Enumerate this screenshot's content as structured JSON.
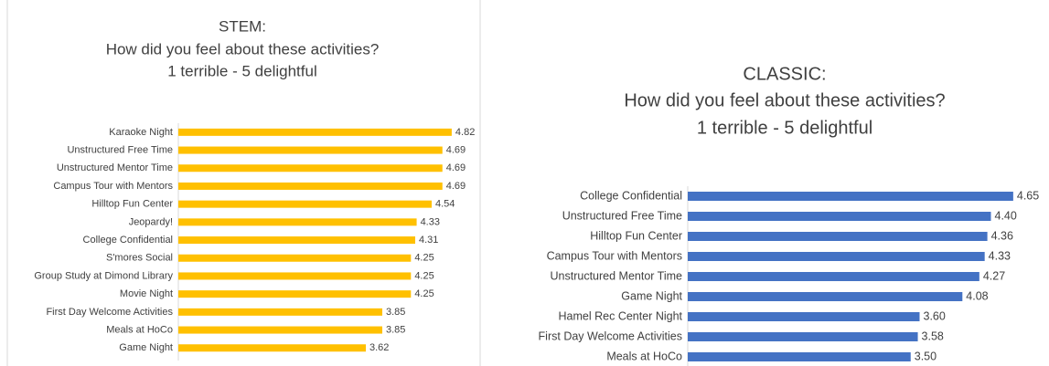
{
  "chart_data": [
    {
      "type": "barh",
      "title": [
        "STEM:",
        "How did you feel about these activities?",
        "1 terrible - 5 delightful"
      ],
      "categories": [
        "Karaoke Night",
        "Unstructured Free Time",
        "Unstructured Mentor Time",
        "Campus Tour with Mentors",
        "Hilltop Fun Center",
        "Jeopardy!",
        "College Confidential",
        "S'mores Social",
        "Group Study at Dimond Library",
        "Movie Night",
        "First Day Welcome Activities",
        "Meals at HoCo",
        "Game Night"
      ],
      "values": [
        4.82,
        4.69,
        4.69,
        4.69,
        4.54,
        4.33,
        4.31,
        4.25,
        4.25,
        4.25,
        3.85,
        3.85,
        3.62
      ],
      "color": "#FFC000",
      "xlim": [
        1,
        5
      ]
    },
    {
      "type": "barh",
      "title": [
        "CLASSIC:",
        "How did you feel about these activities?",
        "1 terrible - 5 delightful"
      ],
      "categories": [
        "College Confidential",
        "Unstructured Free Time",
        "Hilltop Fun Center",
        "Campus Tour with Mentors",
        "Unstructured Mentor Time",
        "Game Night",
        "Hamel Rec Center Night",
        "First Day Welcome Activities",
        "Meals at HoCo"
      ],
      "values": [
        4.65,
        4.4,
        4.36,
        4.33,
        4.27,
        4.08,
        3.6,
        3.58,
        3.5
      ],
      "value_labels": [
        "4.65",
        "4.40",
        "4.36",
        "4.33",
        "4.27",
        "4.08",
        "3.60",
        "3.58",
        "3.50"
      ],
      "color": "#4472C4",
      "xlim": [
        1,
        5
      ]
    }
  ]
}
